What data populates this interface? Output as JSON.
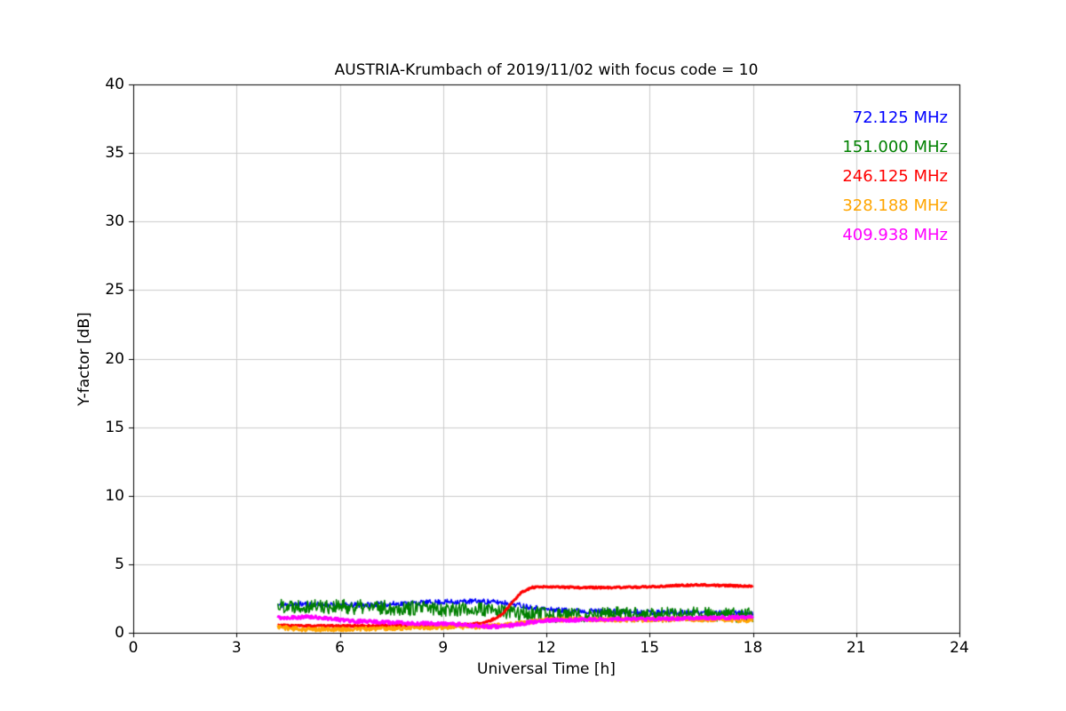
{
  "figure": {
    "background": "#ffffff"
  },
  "chart_data": {
    "type": "line",
    "title": "AUSTRIA-Krumbach of 2019/11/02 with focus code = 10",
    "xlabel": "Universal Time [h]",
    "ylabel": "Y-factor [dB]",
    "xlim": [
      0,
      24
    ],
    "ylim": [
      0,
      40
    ],
    "x_ticks": [
      0,
      3,
      6,
      9,
      12,
      15,
      18,
      21,
      24
    ],
    "y_ticks": [
      0,
      5,
      10,
      15,
      20,
      25,
      30,
      35,
      40
    ],
    "grid": true,
    "grid_color": "#cccccc",
    "axis_color": "#000000",
    "legend_position": "upper right",
    "legend_style": "colored-text-no-box",
    "data_time_range_h": [
      4.2,
      18.0
    ],
    "series": [
      {
        "name": "72.125 MHz",
        "color": "#0000ff",
        "linewidth": 1.5,
        "noise": 0.2,
        "seed": 11,
        "anchors": [
          [
            4.2,
            2.0
          ],
          [
            5,
            2.1
          ],
          [
            6,
            2.0
          ],
          [
            7,
            2.05
          ],
          [
            8,
            2.15
          ],
          [
            9,
            2.25
          ],
          [
            10,
            2.3
          ],
          [
            10.8,
            2.2
          ],
          [
            11.5,
            1.9
          ],
          [
            12,
            1.7
          ],
          [
            13,
            1.6
          ],
          [
            14,
            1.55
          ],
          [
            15,
            1.5
          ],
          [
            16,
            1.5
          ],
          [
            17,
            1.45
          ],
          [
            18,
            1.4
          ]
        ]
      },
      {
        "name": "151.000 MHz",
        "color": "#008000",
        "linewidth": 1.5,
        "noise": 0.55,
        "seed": 22,
        "anchors": [
          [
            4.2,
            2.0
          ],
          [
            5,
            2.0
          ],
          [
            6,
            1.9
          ],
          [
            7,
            1.85
          ],
          [
            8,
            1.8
          ],
          [
            9,
            1.75
          ],
          [
            10,
            1.7
          ],
          [
            11,
            1.5
          ],
          [
            12,
            1.3
          ],
          [
            13,
            1.3
          ],
          [
            14,
            1.35
          ],
          [
            15,
            1.3
          ],
          [
            16,
            1.35
          ],
          [
            17,
            1.3
          ],
          [
            18,
            1.3
          ]
        ]
      },
      {
        "name": "246.125 MHz",
        "color": "#ff0000",
        "linewidth": 3,
        "noise": 0.06,
        "seed": 33,
        "anchors": [
          [
            4.2,
            0.55
          ],
          [
            5,
            0.5
          ],
          [
            6,
            0.5
          ],
          [
            7,
            0.5
          ],
          [
            8,
            0.55
          ],
          [
            9,
            0.55
          ],
          [
            9.8,
            0.6
          ],
          [
            10.3,
            0.8
          ],
          [
            10.7,
            1.3
          ],
          [
            11.0,
            2.2
          ],
          [
            11.3,
            3.0
          ],
          [
            11.6,
            3.3
          ],
          [
            12,
            3.35
          ],
          [
            13,
            3.3
          ],
          [
            14,
            3.3
          ],
          [
            15,
            3.35
          ],
          [
            15.8,
            3.45
          ],
          [
            16.5,
            3.5
          ],
          [
            17,
            3.45
          ],
          [
            18,
            3.4
          ]
        ]
      },
      {
        "name": "328.188 MHz",
        "color": "#ffa500",
        "linewidth": 2.5,
        "noise": 0.15,
        "seed": 44,
        "anchors": [
          [
            4.2,
            0.45
          ],
          [
            4.6,
            0.3
          ],
          [
            5,
            0.25
          ],
          [
            6,
            0.25
          ],
          [
            7,
            0.3
          ],
          [
            8,
            0.35
          ],
          [
            9,
            0.4
          ],
          [
            10,
            0.45
          ],
          [
            10.8,
            0.55
          ],
          [
            11.5,
            0.8
          ],
          [
            12,
            0.95
          ],
          [
            13,
            1.0
          ],
          [
            14,
            0.95
          ],
          [
            15,
            0.95
          ],
          [
            16,
            1.0
          ],
          [
            17,
            0.95
          ],
          [
            18,
            0.9
          ]
        ]
      },
      {
        "name": "409.938 MHz",
        "color": "#ff00ff",
        "linewidth": 3,
        "noise": 0.12,
        "seed": 55,
        "anchors": [
          [
            4.2,
            1.1
          ],
          [
            5,
            1.15
          ],
          [
            5.5,
            1.1
          ],
          [
            6,
            0.95
          ],
          [
            6.5,
            0.85
          ],
          [
            7,
            0.8
          ],
          [
            8,
            0.7
          ],
          [
            9,
            0.65
          ],
          [
            9.5,
            0.6
          ],
          [
            10,
            0.5
          ],
          [
            10.5,
            0.45
          ],
          [
            11,
            0.55
          ],
          [
            11.5,
            0.75
          ],
          [
            12,
            0.9
          ],
          [
            13,
            0.95
          ],
          [
            14,
            1.0
          ],
          [
            15,
            1.0
          ],
          [
            16,
            1.05
          ],
          [
            17,
            1.1
          ],
          [
            18,
            1.15
          ]
        ]
      }
    ]
  }
}
